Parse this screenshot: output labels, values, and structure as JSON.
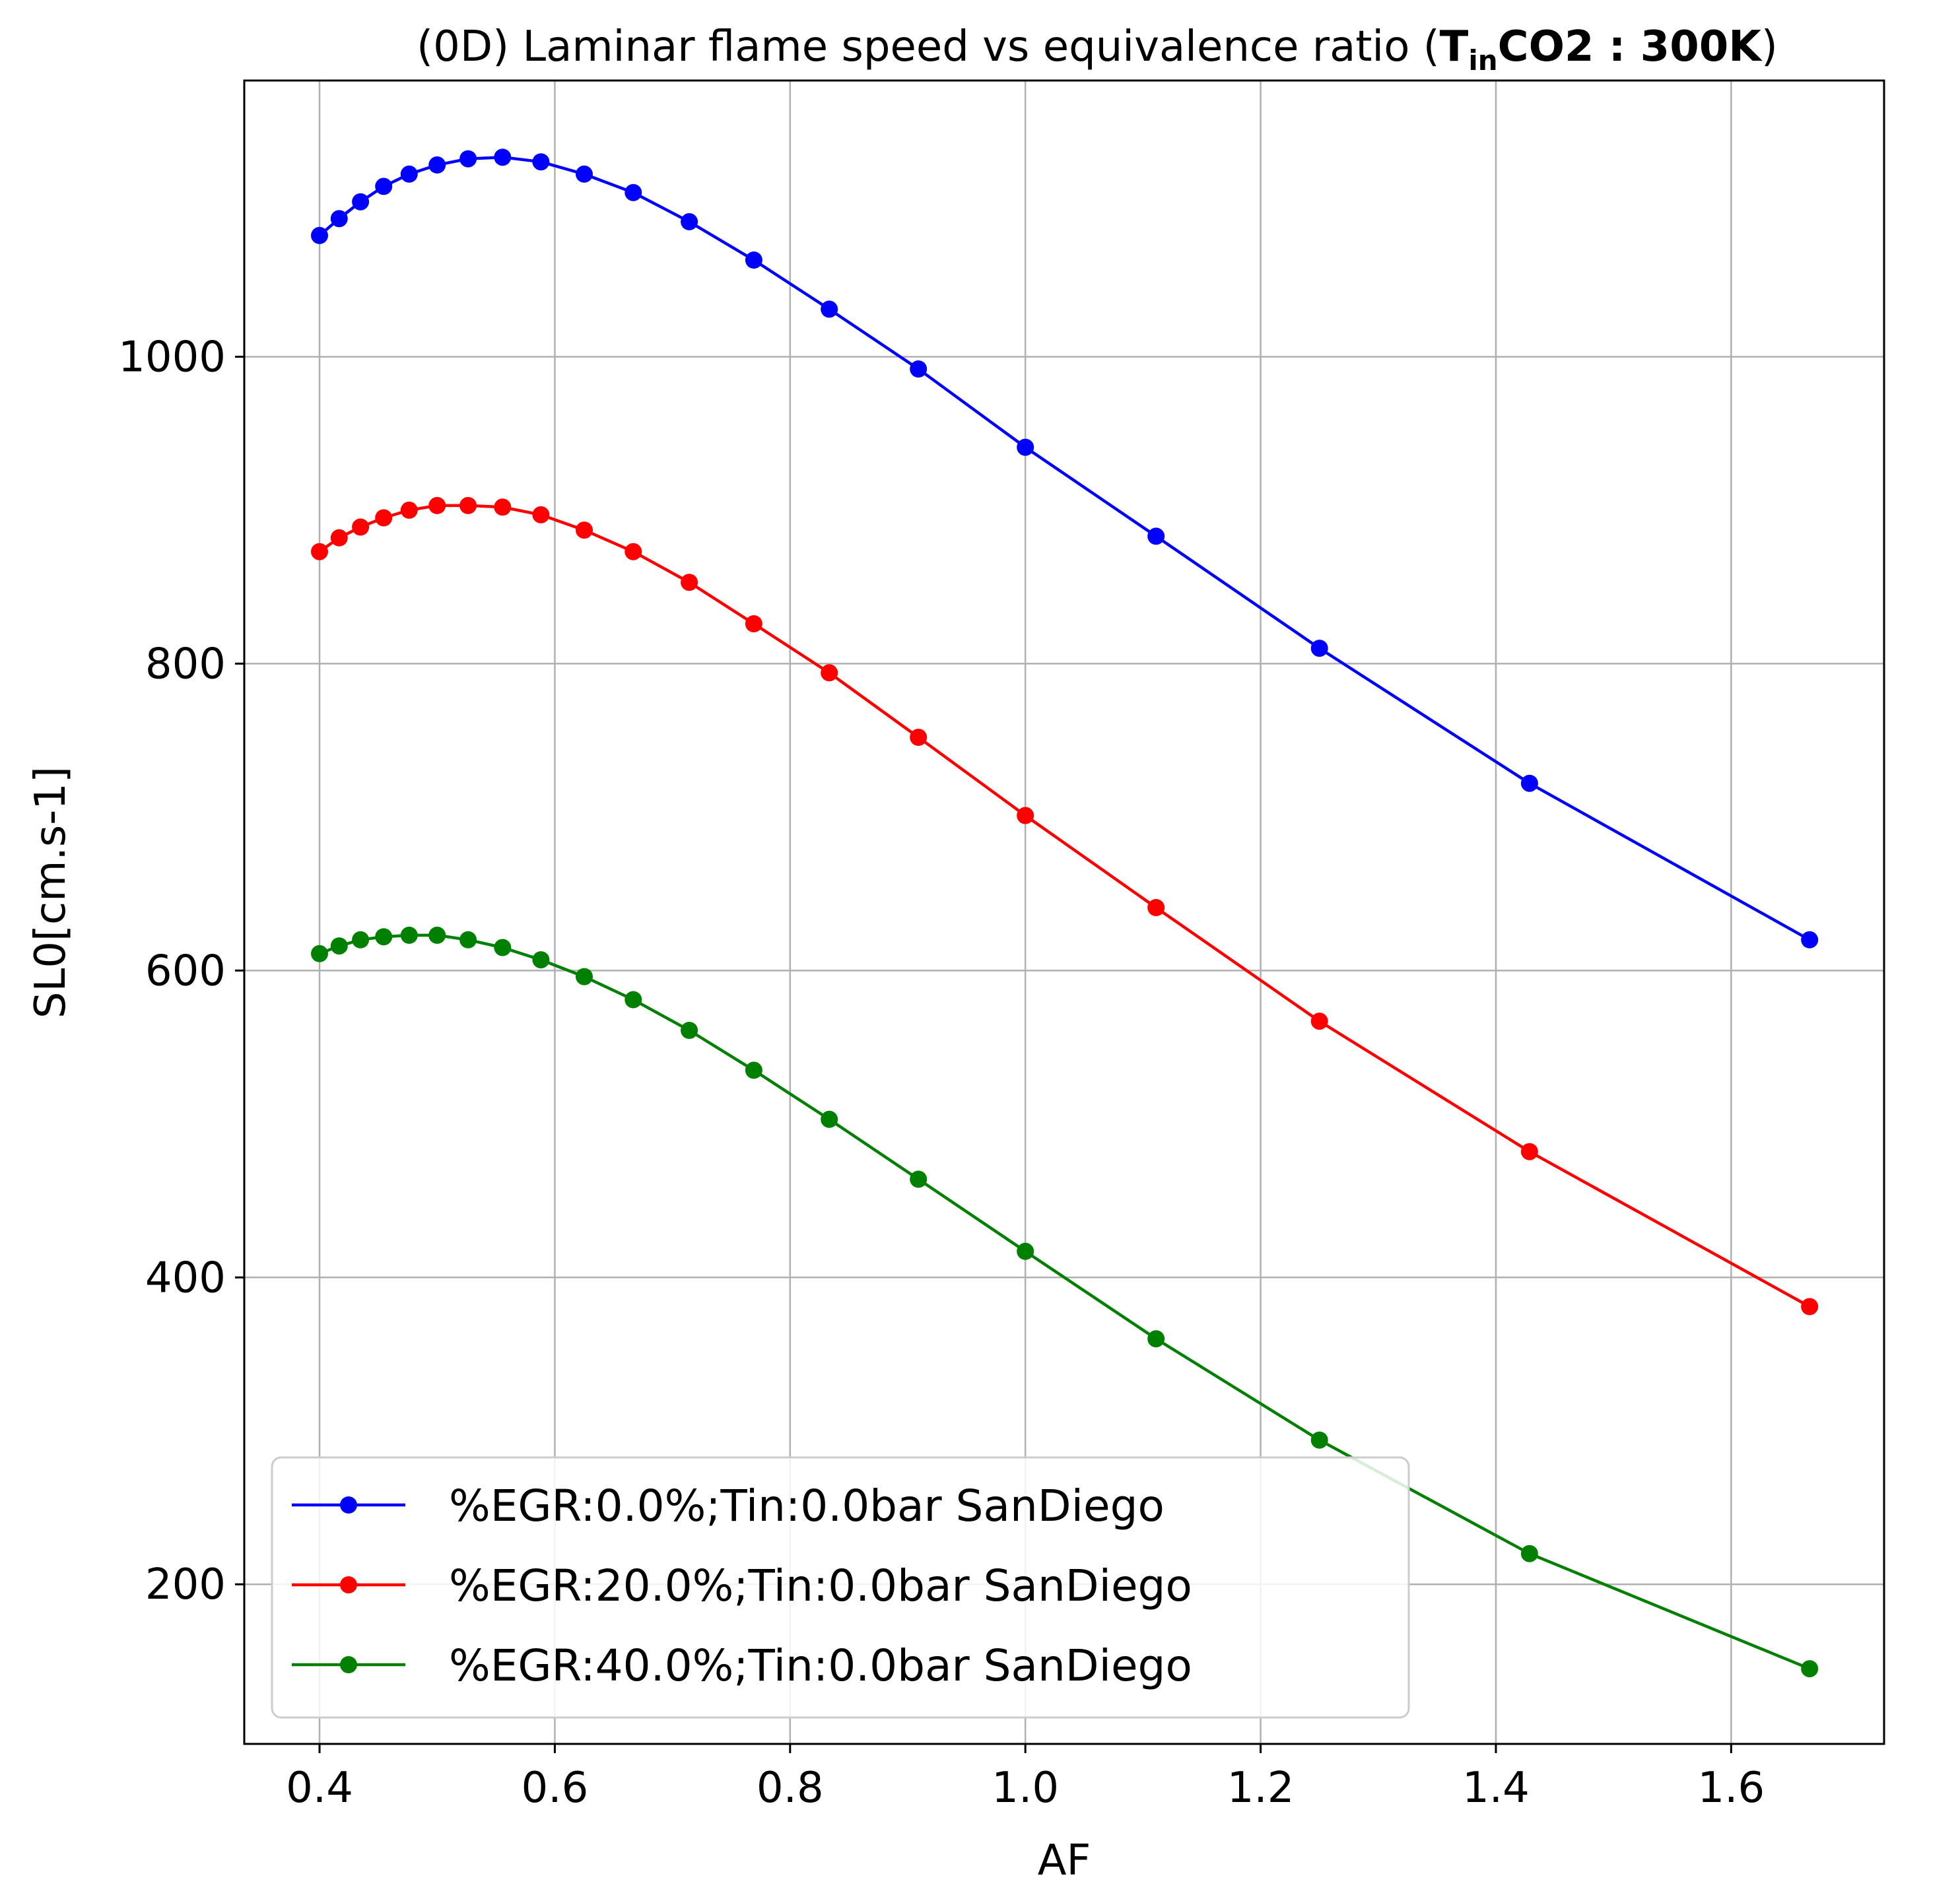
{
  "chart_data": {
    "type": "line",
    "title_parts": {
      "prefix": "(0D) Laminar flame speed vs equivalence ratio (",
      "bold_main": "T",
      "bold_sub": "in",
      "bold_rest": "CO2 : 300K",
      "suffix": ")"
    },
    "xlabel": "AF",
    "ylabel": "SL0[cm.s-1]",
    "xlim": [
      0.336,
      1.73
    ],
    "ylim": [
      96,
      1180
    ],
    "xticks": [
      0.4,
      0.6,
      0.8,
      1.0,
      1.2,
      1.4,
      1.6
    ],
    "xtick_labels": [
      "0.4",
      "0.6",
      "0.8",
      "1.0",
      "1.2",
      "1.4",
      "1.6"
    ],
    "yticks": [
      200,
      400,
      600,
      800,
      1000
    ],
    "ytick_labels": [
      "200",
      "400",
      "600",
      "800",
      "1000"
    ],
    "grid": true,
    "legend_position": "lower-left",
    "x": [
      0.4,
      0.4167,
      0.4348,
      0.4545,
      0.4762,
      0.5,
      0.5263,
      0.5556,
      0.5882,
      0.625,
      0.6667,
      0.7143,
      0.7692,
      0.8333,
      0.9091,
      1.0,
      1.1111,
      1.25,
      1.4286,
      1.6667
    ],
    "series": [
      {
        "name": "%EGR:0.0%;Tin:0.0bar SanDiego",
        "color": "#0000ff",
        "values": [
          1079,
          1090,
          1101,
          1111,
          1119,
          1125,
          1129,
          1130,
          1127,
          1119,
          1107,
          1088,
          1063,
          1031,
          992,
          941,
          883,
          810,
          722,
          620
        ]
      },
      {
        "name": "%EGR:20.0%;Tin:0.0bar SanDiego",
        "color": "#ff0000",
        "values": [
          873,
          882,
          889,
          895,
          900,
          903,
          903,
          902,
          897,
          887,
          873,
          853,
          826,
          794,
          752,
          701,
          641,
          567,
          482,
          381
        ]
      },
      {
        "name": "%EGR:40.0%;Tin:0.0bar SanDiego",
        "color": "#008000",
        "values": [
          611,
          616,
          620,
          622,
          623,
          623,
          620,
          615,
          607,
          596,
          581,
          561,
          535,
          503,
          464,
          417,
          360,
          294,
          220,
          145
        ]
      }
    ]
  }
}
